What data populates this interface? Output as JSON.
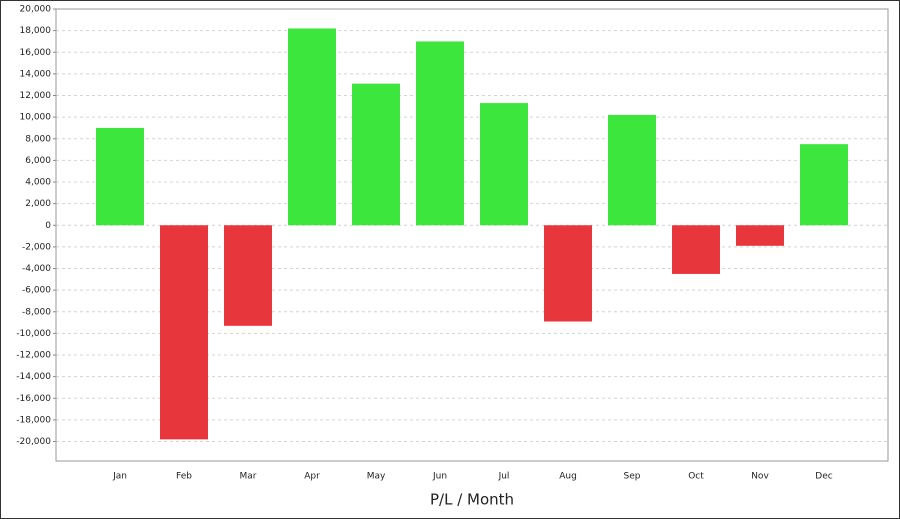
{
  "chart_data": {
    "type": "bar",
    "x_label": "P/L / Month",
    "categories": [
      "Jan",
      "Feb",
      "Mar",
      "Apr",
      "May",
      "Jun",
      "Jul",
      "Aug",
      "Sep",
      "Oct",
      "Nov",
      "Dec"
    ],
    "values": [
      9000,
      -19800,
      -9300,
      18200,
      13100,
      17000,
      11300,
      -8900,
      10200,
      -4500,
      -1900,
      7500
    ],
    "positive_color": "#3de63d",
    "negative_color": "#e8363d",
    "ylim": [
      -21800,
      20000
    ],
    "yticks": [
      {
        "value": -20000,
        "label": "-20,000"
      },
      {
        "value": -18000,
        "label": "-18,000"
      },
      {
        "value": -16000,
        "label": "-16,000"
      },
      {
        "value": -14000,
        "label": "-14,000"
      },
      {
        "value": -12000,
        "label": "-12,000"
      },
      {
        "value": -10000,
        "label": "-10,000"
      },
      {
        "value": -8000,
        "label": "-8,000"
      },
      {
        "value": -6000,
        "label": "-6,000"
      },
      {
        "value": -4000,
        "label": "-4,000"
      },
      {
        "value": -2000,
        "label": "-2,000"
      },
      0,
      {
        "value": 2000,
        "label": "2,000"
      },
      {
        "value": 4000,
        "label": "4,000"
      },
      {
        "value": 6000,
        "label": "6,000"
      },
      {
        "value": 8000,
        "label": "8,000"
      },
      {
        "value": 10000,
        "label": "10,000"
      },
      {
        "value": 12000,
        "label": "12,000"
      },
      {
        "value": 14000,
        "label": "14,000"
      },
      {
        "value": 16000,
        "label": "16,000"
      },
      {
        "value": 18000,
        "label": "18,000"
      },
      {
        "value": 20000,
        "label": "20,000"
      }
    ],
    "grid": true
  }
}
